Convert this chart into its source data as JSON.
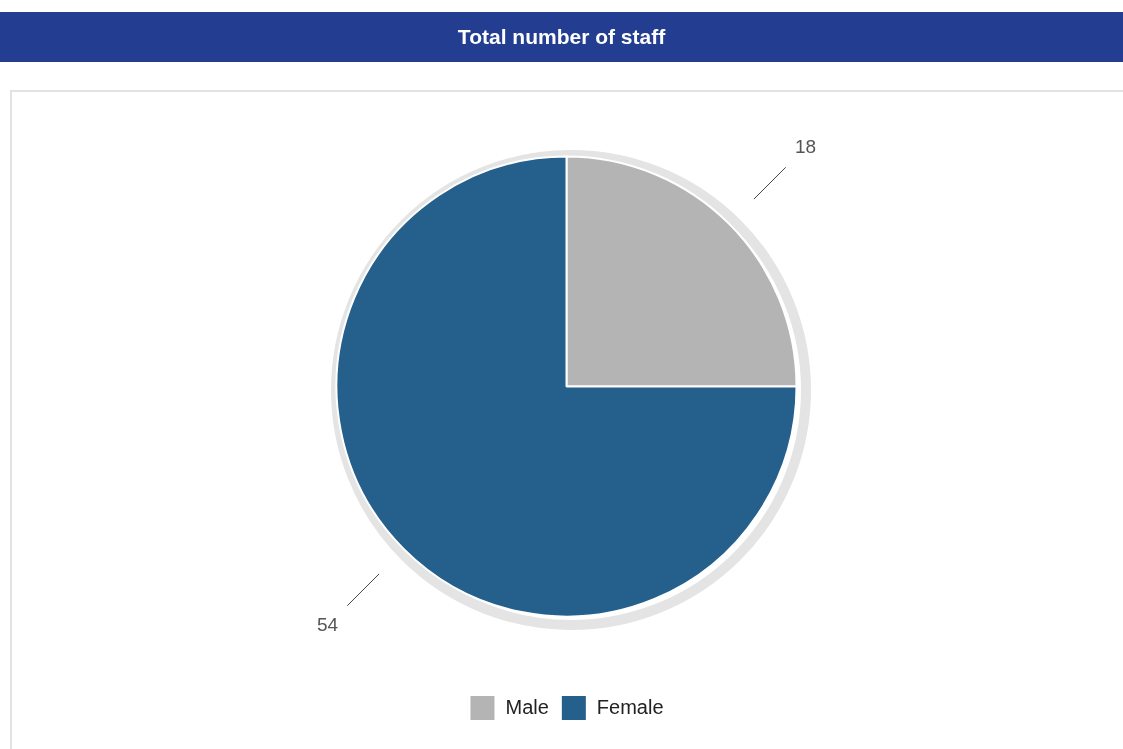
{
  "chart_data": {
    "type": "pie",
    "title": "Total number of staff",
    "categories": [
      "Male",
      "Female"
    ],
    "values": [
      18,
      54
    ],
    "colors": [
      "#b4b4b4",
      "#255f8c"
    ],
    "data_labels": true,
    "legend": "bottom"
  }
}
